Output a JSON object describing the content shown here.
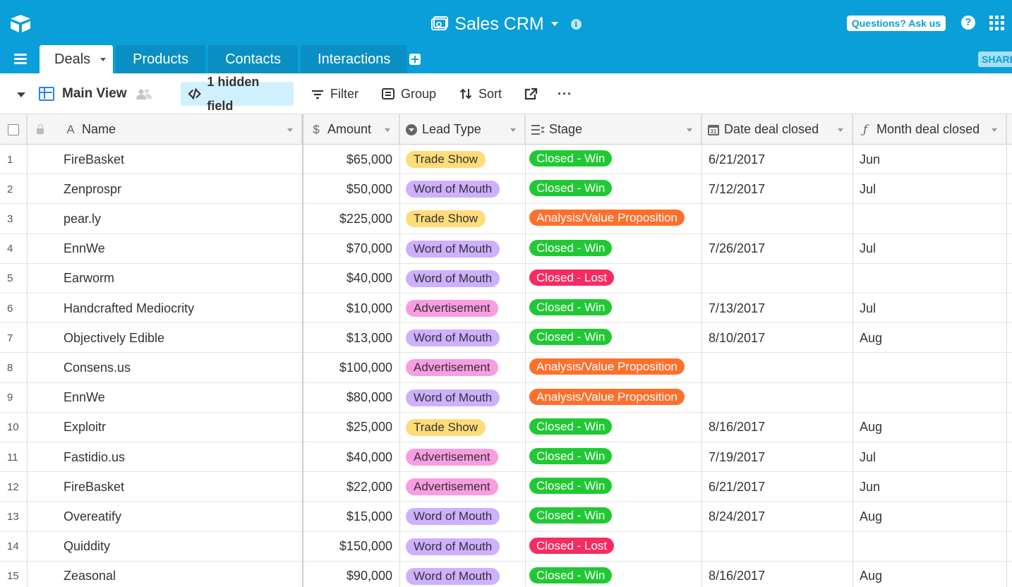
{
  "app": {
    "base_title": "Sales CRM",
    "ask_label": "Questions? Ask us",
    "help_label": "?",
    "share_label": "SHARE",
    "info_label": "i"
  },
  "tabs": [
    {
      "label": "Deals",
      "active": true
    },
    {
      "label": "Products",
      "active": false
    },
    {
      "label": "Contacts",
      "active": false
    },
    {
      "label": "Interactions",
      "active": false
    }
  ],
  "toolbar": {
    "view_name": "Main View",
    "hidden_fields_label": "1 hidden field",
    "filter_label": "Filter",
    "group_label": "Group",
    "sort_label": "Sort",
    "more_label": "···"
  },
  "columns": {
    "name": "Name",
    "amount": "Amount",
    "lead_type": "Lead Type",
    "stage": "Stage",
    "date_closed": "Date deal closed",
    "month_closed": "Month deal closed"
  },
  "lead_colors": {
    "Trade Show": "#ffdc7a",
    "Word of Mouth": "#cdb0ff",
    "Advertisement": "#f99de2"
  },
  "stage_colors": {
    "Closed - Win": "#20c933",
    "Analysis/Value Proposition": "#ff6f2c",
    "Closed - Lost": "#f82b60"
  },
  "rows": [
    {
      "num": "1",
      "name": "FireBasket",
      "amount": "$65,000",
      "lead": "Trade Show",
      "stage": "Closed - Win",
      "date": "6/21/2017",
      "month": "Jun"
    },
    {
      "num": "2",
      "name": "Zenprospr",
      "amount": "$50,000",
      "lead": "Word of Mouth",
      "stage": "Closed - Win",
      "date": "7/12/2017",
      "month": "Jul"
    },
    {
      "num": "3",
      "name": "pear.ly",
      "amount": "$225,000",
      "lead": "Trade Show",
      "stage": "Analysis/Value Proposition",
      "date": "",
      "month": ""
    },
    {
      "num": "4",
      "name": "EnnWe",
      "amount": "$70,000",
      "lead": "Word of Mouth",
      "stage": "Closed - Win",
      "date": "7/26/2017",
      "month": "Jul"
    },
    {
      "num": "5",
      "name": "Earworm",
      "amount": "$40,000",
      "lead": "Word of Mouth",
      "stage": "Closed - Lost",
      "date": "",
      "month": ""
    },
    {
      "num": "6",
      "name": "Handcrafted Mediocrity",
      "amount": "$10,000",
      "lead": "Advertisement",
      "stage": "Closed - Win",
      "date": "7/13/2017",
      "month": "Jul"
    },
    {
      "num": "7",
      "name": "Objectively Edible",
      "amount": "$13,000",
      "lead": "Word of Mouth",
      "stage": "Closed - Win",
      "date": "8/10/2017",
      "month": "Aug"
    },
    {
      "num": "8",
      "name": "Consens.us",
      "amount": "$100,000",
      "lead": "Advertisement",
      "stage": "Analysis/Value Proposition",
      "date": "",
      "month": ""
    },
    {
      "num": "9",
      "name": "EnnWe",
      "amount": "$80,000",
      "lead": "Word of Mouth",
      "stage": "Analysis/Value Proposition",
      "date": "",
      "month": ""
    },
    {
      "num": "10",
      "name": "Exploitr",
      "amount": "$25,000",
      "lead": "Trade Show",
      "stage": "Closed - Win",
      "date": "8/16/2017",
      "month": "Aug"
    },
    {
      "num": "11",
      "name": "Fastidio.us",
      "amount": "$40,000",
      "lead": "Advertisement",
      "stage": "Closed - Win",
      "date": "7/19/2017",
      "month": "Jul"
    },
    {
      "num": "12",
      "name": "FireBasket",
      "amount": "$22,000",
      "lead": "Advertisement",
      "stage": "Closed - Win",
      "date": "6/21/2017",
      "month": "Jun"
    },
    {
      "num": "13",
      "name": "Overeatify",
      "amount": "$15,000",
      "lead": "Word of Mouth",
      "stage": "Closed - Win",
      "date": "8/24/2017",
      "month": "Aug"
    },
    {
      "num": "14",
      "name": "Quiddity",
      "amount": "$150,000",
      "lead": "Word of Mouth",
      "stage": "Closed - Lost",
      "date": "",
      "month": ""
    },
    {
      "num": "15",
      "name": "Zeasonal",
      "amount": "$90,000",
      "lead": "Word of Mouth",
      "stage": "Closed - Win",
      "date": "8/16/2017",
      "month": "Aug"
    }
  ]
}
